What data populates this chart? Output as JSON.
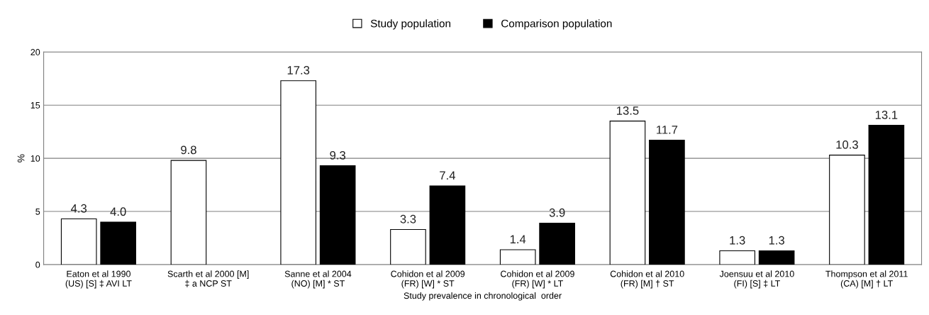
{
  "chart_data": {
    "type": "bar",
    "xlabel": "Study prevalence in chronological  order",
    "ylabel": "%",
    "categories": [
      "Eaton et al 1990\n(US) [S] ‡ AVI LT",
      "Scarth et al 2000 [M]\n‡ a NCP ST",
      "Sanne et al 2004\n(NO) [M] * ST",
      "Cohidon et al 2009\n(FR) [W] * ST",
      "Cohidon et al 2009\n(FR) [W] * LT",
      "Cohidon et al 2010\n(FR) [M] † ST",
      "Joensuu et al 2010\n(FI) [S] ‡ LT",
      "Thompson et al 2011\n(CA) [M] † LT"
    ],
    "series": [
      {
        "name": "Study population",
        "color": "#ffffff",
        "values": [
          4.3,
          9.8,
          17.3,
          3.3,
          1.4,
          13.5,
          1.3,
          10.3
        ],
        "value_labels": [
          "4.3",
          "9.8",
          "17.3",
          "3.3",
          "1.4",
          "13.5",
          "1.3",
          "10.3"
        ]
      },
      {
        "name": "Comparison population",
        "color": "#000000",
        "values": [
          4.0,
          null,
          9.3,
          7.4,
          3.9,
          11.7,
          1.3,
          13.1
        ],
        "value_labels": [
          "4.0",
          null,
          "9.3",
          "7.4",
          "3.9",
          "11.7",
          "1.3",
          "13.1"
        ]
      }
    ],
    "ylim": [
      0,
      20
    ],
    "yticks": [
      0,
      5,
      10,
      15,
      20
    ],
    "grid": "y",
    "legend": "top"
  }
}
